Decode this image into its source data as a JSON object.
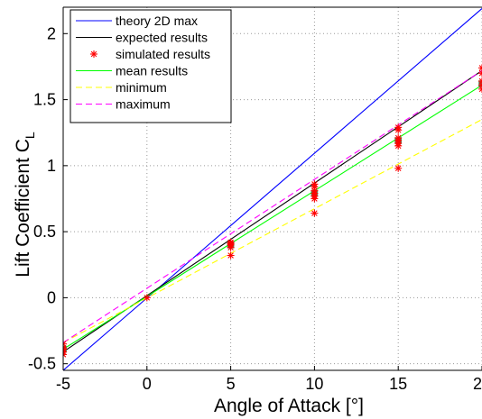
{
  "chart_data": {
    "type": "line",
    "xlabel": "Angle of Attack [°]",
    "ylabel": "Lift Coefficient C",
    "ylabel_sub": "L",
    "xlim": [
      -5,
      20
    ],
    "ylim": [
      -0.55,
      2.2
    ],
    "xticks": [
      -5,
      0,
      5,
      10,
      15,
      20
    ],
    "xtick_labels": [
      "-5",
      "0",
      "5",
      "10",
      "15",
      "20"
    ],
    "yticks": [
      -0.5,
      0,
      0.5,
      1,
      1.5,
      2
    ],
    "ytick_labels": [
      "-0.5",
      "0",
      "0.5",
      "1",
      "1.5",
      "2"
    ],
    "grid": true,
    "legend_position": "top-left",
    "series": [
      {
        "name": "theory 2D max",
        "kind": "line",
        "color": "#0000ff",
        "dash": "solid",
        "x": [
          -5,
          20
        ],
        "y": [
          -0.55,
          2.19
        ]
      },
      {
        "name": "expected results",
        "kind": "line",
        "color": "#000000",
        "dash": "solid",
        "x": [
          -5,
          20
        ],
        "y": [
          -0.41,
          1.72
        ]
      },
      {
        "name": "simulated results",
        "kind": "scatter",
        "color": "#ff0000",
        "marker": "*",
        "x": [
          -5,
          -5,
          -5,
          -5,
          -5,
          0,
          5,
          5,
          5,
          5,
          5,
          10,
          10,
          10,
          10,
          10,
          10,
          10,
          15,
          15,
          15,
          15,
          15,
          15,
          15,
          20,
          20,
          20,
          20,
          20
        ],
        "y": [
          -0.35,
          -0.38,
          -0.39,
          -0.41,
          -0.43,
          0.0,
          0.32,
          0.38,
          0.4,
          0.41,
          0.42,
          0.64,
          0.75,
          0.77,
          0.79,
          0.81,
          0.84,
          0.86,
          0.98,
          1.15,
          1.17,
          1.19,
          1.21,
          1.27,
          1.29,
          1.58,
          1.61,
          1.64,
          1.7,
          1.74
        ]
      },
      {
        "name": "mean results",
        "kind": "line",
        "color": "#00ff00",
        "dash": "solid",
        "x": [
          -5,
          20
        ],
        "y": [
          -0.39,
          1.61
        ]
      },
      {
        "name": "minimum",
        "kind": "line",
        "color": "#ffff00",
        "dash": "dashed",
        "x": [
          -5,
          20
        ],
        "y": [
          -0.34,
          1.35
        ]
      },
      {
        "name": "maximum",
        "kind": "line",
        "color": "#ff00ff",
        "dash": "dashed",
        "x": [
          -5,
          20
        ],
        "y": [
          -0.34,
          1.72
        ]
      }
    ],
    "mean_markers": {
      "color": "#2e8b57",
      "x": [
        -5,
        5,
        10,
        15,
        20
      ],
      "y": [
        -0.39,
        0.4,
        0.79,
        1.19,
        1.62
      ]
    }
  }
}
